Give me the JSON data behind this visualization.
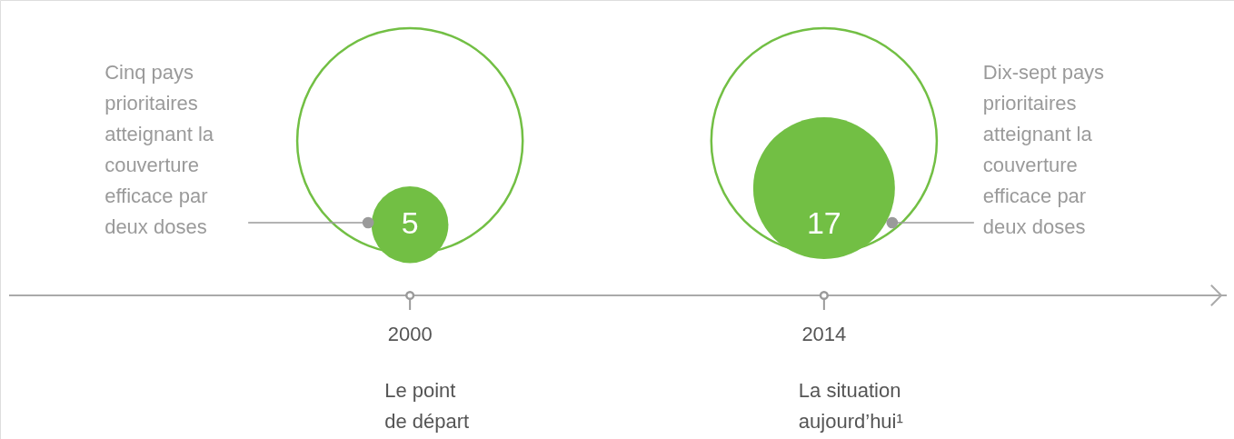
{
  "chart_data": {
    "type": "bubble",
    "data_labels": true,
    "categories": [
      "2000",
      "2014"
    ],
    "series": [
      {
        "color": "#72bf44",
        "values": [
          5,
          17
        ],
        "sizes": [
          0.294,
          1
        ]
      }
    ],
    "annotations": [
      "Cinq pays\nprioritaires\natteignant la\ncouverture\nefficace par\ndeux doses",
      "Dix-sept pays\nprioritaires\natteignant la\ncouverture\nefficace par\ndeux doses",
      "Le point\nde départ",
      "La situation\naujourd’hui¹"
    ]
  }
}
